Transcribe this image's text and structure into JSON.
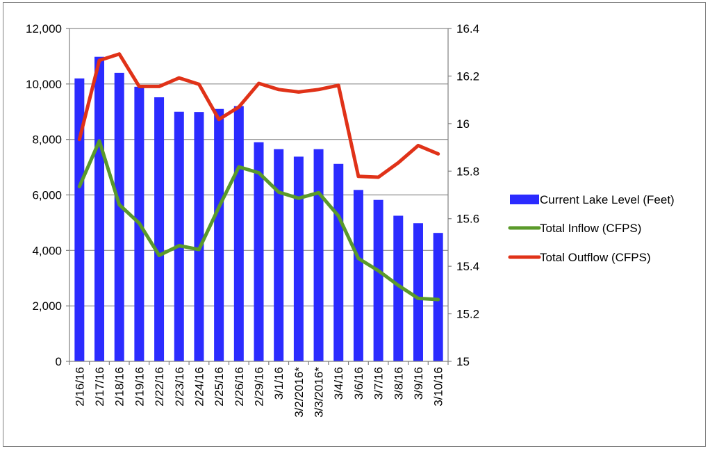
{
  "chart_data": {
    "type": "bar",
    "categories": [
      "2/16/16",
      "2/17/16",
      "2/18/16",
      "2/19/16",
      "2/22/16",
      "2/23/16",
      "2/24/16",
      "2/25/16",
      "2/26/16",
      "2/29/16",
      "3/1/16",
      "3/2/2016*",
      "3/3/2016*",
      "3/4/16",
      "3/6/16",
      "3/7/16",
      "3/8/16",
      "3/9/16",
      "3/10/16"
    ],
    "y_left": {
      "min": 0,
      "max": 12000,
      "ticks": [
        "0",
        "2,000",
        "4,000",
        "6,000",
        "8,000",
        "10,000",
        "12,000"
      ],
      "tick_values": [
        0,
        2000,
        4000,
        6000,
        8000,
        10000,
        12000
      ]
    },
    "y_right": {
      "min": 15,
      "max": 16.4,
      "ticks": [
        "15",
        "15.2",
        "15.4",
        "15.6",
        "15.8",
        "16",
        "16.2",
        "16.4"
      ],
      "tick_values": [
        15,
        15.2,
        15.4,
        15.6,
        15.8,
        16,
        16.2,
        16.4
      ]
    },
    "grid": "horizontal",
    "legend_position": "right",
    "series": [
      {
        "name": "Current Lake Level (Feet)",
        "kind": "bar",
        "axis": "left",
        "color": "#2b2bff",
        "values": [
          10200,
          10980,
          10400,
          9900,
          9520,
          9000,
          8990,
          9100,
          9200,
          7900,
          7650,
          7380,
          7650,
          7120,
          6180,
          5820,
          5250,
          4980,
          4630
        ]
      },
      {
        "name": "Total Inflow (CFPS)",
        "kind": "line",
        "axis": "left",
        "color": "#5a9a2a",
        "values": [
          6300,
          7950,
          5650,
          4980,
          3820,
          4170,
          4030,
          5560,
          7010,
          6800,
          6100,
          5880,
          6080,
          5240,
          3710,
          3270,
          2740,
          2270,
          2230
        ]
      },
      {
        "name": "Total Outflow (CFPS)",
        "kind": "line",
        "axis": "left",
        "color": "#e03218",
        "values": [
          8000,
          10850,
          11080,
          9910,
          9910,
          10220,
          9990,
          8720,
          9170,
          10020,
          9800,
          9710,
          9800,
          9950,
          6670,
          6640,
          7160,
          7780,
          7480
        ]
      }
    ]
  }
}
